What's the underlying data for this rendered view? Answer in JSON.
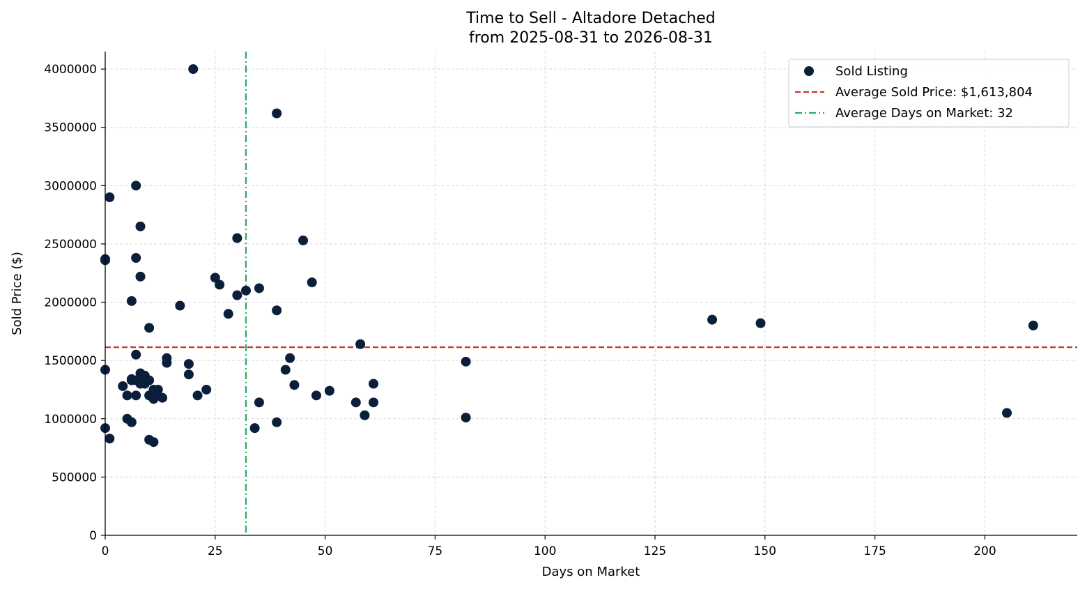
{
  "chart_data": {
    "type": "scatter",
    "title": [
      "Time to Sell - Altadore Detached",
      "from 2025-08-31 to 2026-08-31"
    ],
    "xlabel": "Days on Market",
    "ylabel": "Sold Price ($)",
    "xlim": [
      0,
      221
    ],
    "ylim": [
      0,
      4150000
    ],
    "xticks": [
      0,
      25,
      50,
      75,
      100,
      125,
      150,
      175,
      200
    ],
    "yticks": [
      0,
      500000,
      1000000,
      1500000,
      2000000,
      2500000,
      3000000,
      3500000,
      4000000
    ],
    "grid": true,
    "legend_position": "top-right",
    "colors": {
      "points": "#0b1f3a",
      "avg_price": "#c0392b",
      "avg_days": "#27ae60"
    },
    "legend": [
      {
        "label": "Sold Listing",
        "kind": "point"
      },
      {
        "label": "Average Sold Price: $1,613,804",
        "kind": "dashed"
      },
      {
        "label": "Average Days on Market: 32",
        "kind": "dashdot"
      }
    ],
    "avg_price": 1613804,
    "avg_days": 32,
    "series": [
      {
        "name": "Sold Listing",
        "points": [
          [
            0,
            2370000
          ],
          [
            0,
            2360000
          ],
          [
            0,
            1420000
          ],
          [
            0,
            920000
          ],
          [
            1,
            2900000
          ],
          [
            1,
            830000
          ],
          [
            4,
            1280000
          ],
          [
            5,
            1200000
          ],
          [
            5,
            1000000
          ],
          [
            6,
            2010000
          ],
          [
            6,
            1330000
          ],
          [
            6,
            970000
          ],
          [
            6,
            1340000
          ],
          [
            7,
            3000000
          ],
          [
            7,
            2380000
          ],
          [
            7,
            1550000
          ],
          [
            7,
            1200000
          ],
          [
            7,
            1330000
          ],
          [
            8,
            2650000
          ],
          [
            8,
            2220000
          ],
          [
            8,
            1390000
          ],
          [
            8,
            1300000
          ],
          [
            8,
            1350000
          ],
          [
            9,
            1370000
          ],
          [
            9,
            1330000
          ],
          [
            9,
            1300000
          ],
          [
            10,
            1780000
          ],
          [
            10,
            1330000
          ],
          [
            10,
            1200000
          ],
          [
            10,
            820000
          ],
          [
            11,
            1170000
          ],
          [
            11,
            1250000
          ],
          [
            11,
            800000
          ],
          [
            12,
            1250000
          ],
          [
            12,
            1200000
          ],
          [
            13,
            1180000
          ],
          [
            14,
            1520000
          ],
          [
            14,
            1480000
          ],
          [
            17,
            1970000
          ],
          [
            19,
            1470000
          ],
          [
            19,
            1380000
          ],
          [
            20,
            4000000
          ],
          [
            21,
            1200000
          ],
          [
            23,
            1250000
          ],
          [
            25,
            2210000
          ],
          [
            26,
            2150000
          ],
          [
            28,
            1900000
          ],
          [
            30,
            2550000
          ],
          [
            30,
            2060000
          ],
          [
            32,
            2100000
          ],
          [
            34,
            920000
          ],
          [
            35,
            2120000
          ],
          [
            35,
            1140000
          ],
          [
            39,
            3620000
          ],
          [
            39,
            1930000
          ],
          [
            39,
            970000
          ],
          [
            41,
            1420000
          ],
          [
            42,
            1520000
          ],
          [
            43,
            1290000
          ],
          [
            45,
            2530000
          ],
          [
            47,
            2170000
          ],
          [
            48,
            1200000
          ],
          [
            51,
            1240000
          ],
          [
            57,
            1140000
          ],
          [
            58,
            1640000
          ],
          [
            59,
            1030000
          ],
          [
            61,
            1300000
          ],
          [
            61,
            1140000
          ],
          [
            82,
            1490000
          ],
          [
            82,
            1010000
          ],
          [
            138,
            1850000
          ],
          [
            149,
            1820000
          ],
          [
            205,
            1050000
          ],
          [
            211,
            1800000
          ]
        ]
      }
    ]
  }
}
